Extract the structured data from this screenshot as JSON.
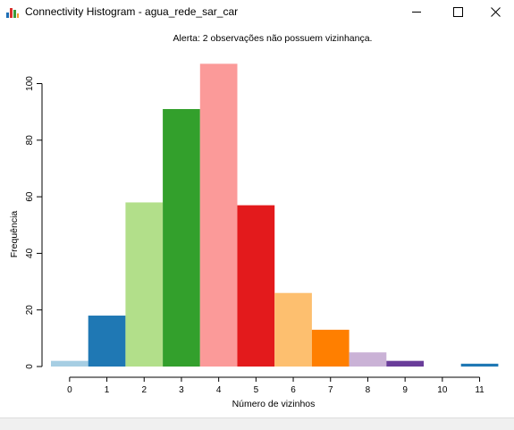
{
  "window": {
    "title": "Connectivity Histogram - agua_rede_sar_car",
    "icon": "histogram-app-icon",
    "buttons": {
      "minimize": "minimize-icon",
      "maximize": "maximize-icon",
      "close": "close-icon"
    }
  },
  "chart_data": {
    "type": "bar",
    "title": "Alerta: 2 observações não possuem vizinhança.",
    "xlabel": "Número de vizinhos",
    "ylabel": "Frequência",
    "categories": [
      "0",
      "1",
      "2",
      "3",
      "4",
      "5",
      "6",
      "7",
      "8",
      "9",
      "10",
      "11"
    ],
    "values": [
      2,
      18,
      58,
      91,
      107,
      57,
      26,
      13,
      5,
      2,
      0,
      1
    ],
    "colors": [
      "#a6cee3",
      "#1f78b4",
      "#b2df8a",
      "#33a02c",
      "#fb9a99",
      "#e31a1c",
      "#fdbf6f",
      "#ff7f00",
      "#cab2d6",
      "#6a3d9a",
      "#ffff99",
      "#1f78b4"
    ],
    "yticks": [
      0,
      20,
      40,
      60,
      80,
      100
    ],
    "ylim": [
      0,
      110
    ],
    "grid": false,
    "legend": "none"
  }
}
